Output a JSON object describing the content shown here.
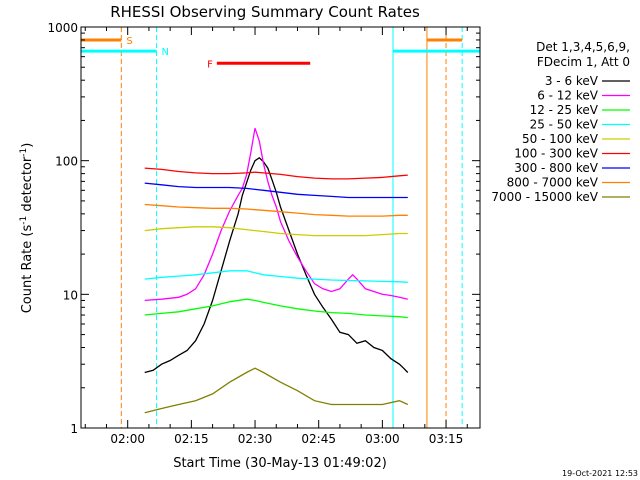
{
  "chart_data": {
    "type": "line",
    "title": "RHESSI Observing Summary Count Rates",
    "xlabel": "Start Time (30-May-13 01:49:02)",
    "ylabel_main": "Count Rate (s",
    "ylabel_sup1": "-1",
    "ylabel_mid": " detector",
    "ylabel_sup2": "-1",
    "ylabel_end": ")",
    "yscale": "log",
    "ylim": [
      1,
      1000
    ],
    "xlim_minutes": [
      -11,
      83
    ],
    "x_unit": "minutes from 02:00",
    "x_ticks": [
      {
        "label": "02:00",
        "minute": 0
      },
      {
        "label": "02:15",
        "minute": 15
      },
      {
        "label": "02:30",
        "minute": 30
      },
      {
        "label": "02:45",
        "minute": 45
      },
      {
        "label": "03:00",
        "minute": 60
      },
      {
        "label": "03:15",
        "minute": 75
      }
    ],
    "y_ticks": [
      {
        "label": "1",
        "value": 1
      },
      {
        "label": "10",
        "value": 10
      },
      {
        "label": "100",
        "value": 100
      },
      {
        "label": "1000",
        "value": 1000
      }
    ],
    "legend_header": [
      "Det 1,3,4,5,6,9,",
      "FDecim 1, Att 0"
    ],
    "legend_placement": "right",
    "series": [
      {
        "name": "3 - 6 keV",
        "color": "#000000",
        "x": [
          4,
          6,
          8,
          10,
          12,
          14,
          16,
          18,
          20,
          22,
          24,
          26,
          27,
          28,
          29,
          30,
          31,
          32,
          33,
          34,
          35,
          36,
          38,
          40,
          42,
          44,
          46,
          48,
          50,
          52,
          54,
          56,
          58,
          60,
          62,
          64,
          65,
          66
        ],
        "y": [
          2.6,
          2.7,
          3.0,
          3.2,
          3.5,
          3.8,
          4.5,
          6,
          9,
          15,
          25,
          40,
          55,
          68,
          85,
          100,
          105,
          98,
          88,
          72,
          58,
          45,
          30,
          20,
          14,
          10,
          8,
          6.5,
          5.2,
          5.0,
          4.3,
          4.5,
          4.0,
          3.8,
          3.3,
          3.0,
          2.8,
          2.6
        ]
      },
      {
        "name": "6 - 12 keV",
        "color": "#ff00ff",
        "x": [
          4,
          8,
          12,
          14,
          16,
          18,
          20,
          22,
          24,
          26,
          27,
          28,
          29,
          30,
          31,
          32,
          33,
          34,
          35,
          36,
          38,
          40,
          42,
          44,
          46,
          48,
          50,
          52,
          53,
          54,
          56,
          58,
          60,
          62,
          64,
          66
        ],
        "y": [
          9,
          9.2,
          9.5,
          10,
          11,
          14,
          20,
          30,
          42,
          55,
          62,
          78,
          115,
          175,
          140,
          95,
          70,
          55,
          45,
          35,
          25,
          19,
          15,
          12,
          11,
          10.5,
          11,
          13,
          14,
          13,
          11,
          10.5,
          10,
          9.8,
          9.5,
          9.2
        ]
      },
      {
        "name": "12 - 25 keV",
        "color": "#00ff00",
        "x": [
          4,
          8,
          12,
          16,
          20,
          24,
          28,
          30,
          32,
          36,
          40,
          44,
          48,
          52,
          56,
          60,
          64,
          66
        ],
        "y": [
          7,
          7.2,
          7.4,
          7.8,
          8.2,
          8.8,
          9.2,
          9.0,
          8.7,
          8.2,
          7.8,
          7.5,
          7.3,
          7.2,
          7.0,
          6.9,
          6.8,
          6.7
        ]
      },
      {
        "name": "25 - 50 keV",
        "color": "#00ffff",
        "x": [
          4,
          8,
          12,
          16,
          20,
          24,
          28,
          30,
          32,
          36,
          40,
          44,
          48,
          52,
          56,
          60,
          64,
          66
        ],
        "y": [
          13,
          13.4,
          13.7,
          14,
          14.5,
          15,
          15,
          14.5,
          14,
          13.6,
          13.2,
          13,
          12.8,
          12.7,
          12.6,
          12.5,
          12.4,
          12.3
        ]
      },
      {
        "name": "50 - 100 keV",
        "color": "#cccc00",
        "x": [
          4,
          8,
          12,
          16,
          20,
          24,
          28,
          30,
          32,
          36,
          40,
          44,
          48,
          52,
          56,
          60,
          64,
          66
        ],
        "y": [
          30,
          31,
          31.5,
          32,
          32,
          31.5,
          30.5,
          30,
          29.5,
          28.5,
          28,
          27.5,
          27.5,
          27.5,
          27.5,
          28,
          28.5,
          28.5
        ]
      },
      {
        "name": "100 - 300 keV",
        "color": "#ff0000",
        "x": [
          4,
          8,
          12,
          16,
          20,
          24,
          28,
          30,
          32,
          36,
          40,
          44,
          48,
          52,
          56,
          60,
          64,
          66
        ],
        "y": [
          88,
          86,
          83,
          81,
          80,
          80,
          81,
          82,
          81,
          79,
          76,
          74,
          73,
          73,
          74,
          75,
          77,
          78
        ]
      },
      {
        "name": "300 - 800 keV",
        "color": "#0000ff",
        "x": [
          4,
          8,
          12,
          16,
          20,
          24,
          28,
          30,
          32,
          36,
          40,
          44,
          48,
          52,
          56,
          60,
          64,
          66
        ],
        "y": [
          68,
          66,
          64,
          63,
          63,
          63,
          62,
          61,
          60,
          58,
          56,
          55,
          54,
          53,
          53,
          53,
          53,
          53
        ]
      },
      {
        "name": "800 - 7000 keV",
        "color": "#ff8000",
        "x": [
          4,
          8,
          12,
          16,
          20,
          24,
          28,
          30,
          32,
          36,
          40,
          44,
          48,
          52,
          56,
          60,
          64,
          66
        ],
        "y": [
          47,
          46,
          45,
          44.5,
          44,
          44,
          43.5,
          43,
          42.5,
          41.5,
          40.5,
          39.5,
          39,
          38.5,
          38.5,
          38.5,
          39,
          39
        ]
      },
      {
        "name": "7000 - 15000 keV",
        "color": "#808000",
        "x": [
          4,
          8,
          12,
          16,
          20,
          24,
          28,
          30,
          32,
          36,
          40,
          44,
          48,
          52,
          56,
          60,
          64,
          66
        ],
        "y": [
          1.3,
          1.4,
          1.5,
          1.6,
          1.8,
          2.2,
          2.6,
          2.8,
          2.6,
          2.2,
          1.9,
          1.6,
          1.5,
          1.5,
          1.5,
          1.5,
          1.6,
          1.5
        ]
      }
    ],
    "markers": [
      {
        "label": "S",
        "color": "#ff8000",
        "orientation": "vertical",
        "style": "dashed",
        "minute": -1.5
      },
      {
        "label": "N",
        "color": "#00ffff",
        "orientation": "vertical",
        "style": "dashed",
        "minute": 6.8
      },
      {
        "label": "",
        "color": "#00ffff",
        "orientation": "vertical",
        "style": "solid",
        "minute": 62.5
      },
      {
        "label": "",
        "color": "#ff8000",
        "orientation": "vertical",
        "style": "solid",
        "minute": 70.5
      },
      {
        "label": "",
        "color": "#00ffff",
        "orientation": "vertical",
        "style": "dashed",
        "minute": 78.8
      },
      {
        "label": "",
        "color": "#ff8000",
        "orientation": "vertical",
        "style": "dashed",
        "minute": 75.0
      }
    ],
    "bars": [
      {
        "label": "S",
        "color": "#ff8000",
        "from_minute": -11,
        "to_minute": -1.5,
        "value": 800
      },
      {
        "label": "N",
        "color": "#00ffff",
        "from_minute": -11,
        "to_minute": 6.8,
        "value": 660
      },
      {
        "label": "",
        "color": "#ff8000",
        "from_minute": 70.5,
        "to_minute": 78.8,
        "value": 800
      },
      {
        "label": "",
        "color": "#00ffff",
        "from_minute": 62.5,
        "to_minute": 83,
        "value": 660
      },
      {
        "label": "F",
        "color": "#ff0000",
        "from_minute": 21,
        "to_minute": 43,
        "value": 535
      }
    ],
    "timestamp": "19-Oct-2021 12:53"
  }
}
